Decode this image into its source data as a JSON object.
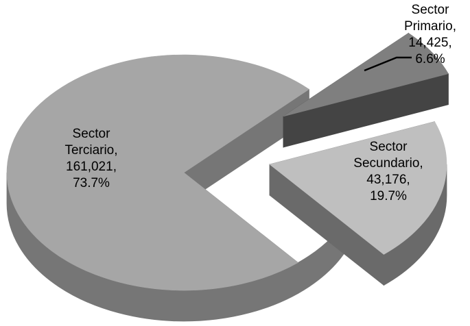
{
  "chart_data": {
    "type": "pie",
    "style": "3d-exploded",
    "title": "",
    "slices": [
      {
        "name": "Sector Primario",
        "value": 14425,
        "percent": "6.6%",
        "label_lines": [
          "Sector",
          "Primario,",
          "14,425,",
          "6.6%"
        ],
        "color": "#7f7f7f",
        "side_color": "#444444"
      },
      {
        "name": "Sector Secundario",
        "value": 43176,
        "percent": "19.7%",
        "label_lines": [
          "Sector",
          "Secundario,",
          "43,176,",
          "19.7%"
        ],
        "color": "#bfbfbf",
        "side_color": "#6a6a6a"
      },
      {
        "name": "Sector Terciario",
        "value": 161021,
        "percent": "73.7%",
        "label_lines": [
          "Sector",
          "Terciario,",
          "161,021,",
          "73.7%"
        ],
        "color": "#a6a6a6",
        "side_color": "#767676"
      }
    ],
    "legend": "none",
    "leader_line_on": "Sector Primario"
  }
}
